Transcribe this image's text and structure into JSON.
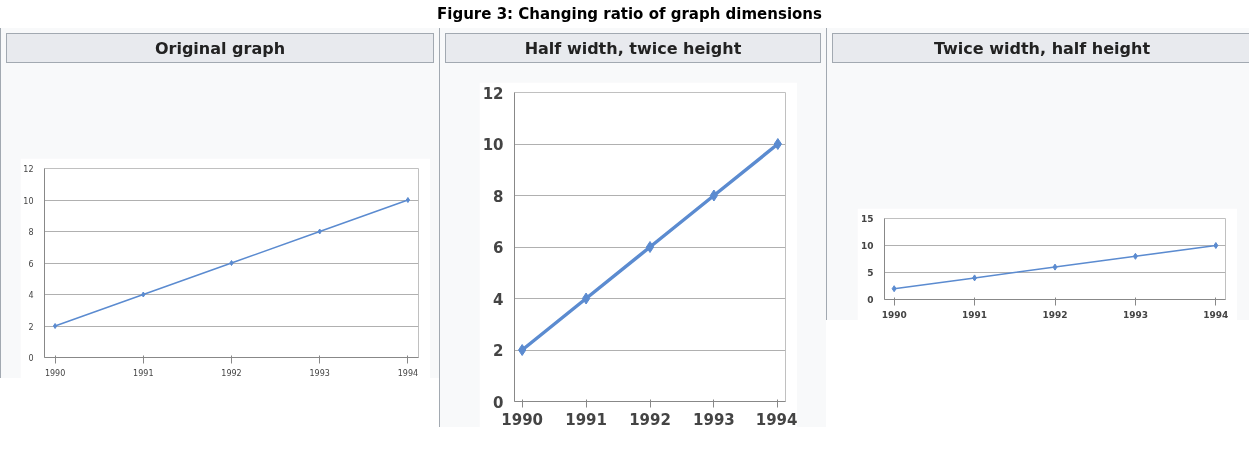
{
  "chart_data": [
    {
      "type": "line",
      "title": "Original graph",
      "annotations": [
        "Figure 3: Changing ratio of graph dimensions"
      ],
      "categories": [
        "1990",
        "1991",
        "1992",
        "1993",
        "1994"
      ],
      "series": [
        {
          "color": "#5b8bd0",
          "values": [
            2,
            4,
            6,
            8,
            10
          ]
        }
      ],
      "ylim": [
        0,
        12
      ],
      "yticks": [
        0,
        2,
        4,
        6,
        8,
        10,
        12
      ],
      "grid": "y",
      "marker": "diamond",
      "line_style": "solid"
    },
    {
      "type": "line",
      "title": "Half width, twice height",
      "categories": [
        "1990",
        "1991",
        "1992",
        "1993",
        "1994"
      ],
      "series": [
        {
          "color": "#5b8bd0",
          "values": [
            2,
            4,
            6,
            8,
            10
          ]
        }
      ],
      "ylim": [
        0,
        12
      ],
      "yticks": [
        0,
        2,
        4,
        6,
        8,
        10,
        12
      ],
      "grid": "y",
      "marker": "diamond",
      "line_style": "solid"
    },
    {
      "type": "line",
      "title": "Twice width, half height",
      "categories": [
        "1990",
        "1991",
        "1992",
        "1993",
        "1994"
      ],
      "series": [
        {
          "color": "#5b8bd0",
          "values": [
            2,
            4,
            6,
            8,
            10
          ]
        }
      ],
      "ylim": [
        0,
        15
      ],
      "yticks": [
        0,
        5,
        10,
        15
      ],
      "grid": "y",
      "marker": "diamond",
      "line_style": "solid"
    }
  ]
}
